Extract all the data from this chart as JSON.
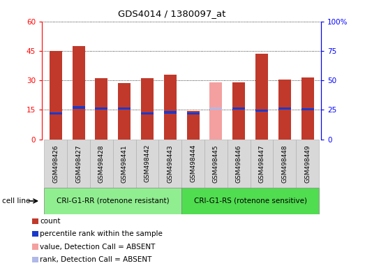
{
  "title": "GDS4014 / 1380097_at",
  "samples": [
    "GSM498426",
    "GSM498427",
    "GSM498428",
    "GSM498441",
    "GSM498442",
    "GSM498443",
    "GSM498444",
    "GSM498445",
    "GSM498446",
    "GSM498447",
    "GSM498448",
    "GSM498449"
  ],
  "counts": [
    45.0,
    47.5,
    31.0,
    28.5,
    31.0,
    33.0,
    14.5,
    0,
    29.0,
    43.5,
    30.5,
    31.5
  ],
  "ranks": [
    22.0,
    27.0,
    26.0,
    26.0,
    22.0,
    23.0,
    22.0,
    0,
    26.0,
    24.5,
    26.0,
    25.5
  ],
  "absent_count": [
    0,
    0,
    0,
    0,
    0,
    0,
    0,
    29.0,
    0,
    0,
    0,
    0
  ],
  "absent_rank": [
    0,
    0,
    0,
    0,
    0,
    0,
    0,
    26.0,
    0,
    0,
    0,
    0
  ],
  "absent_flags": [
    false,
    false,
    false,
    false,
    false,
    false,
    false,
    true,
    false,
    false,
    false,
    false
  ],
  "ylim_left": [
    0,
    60
  ],
  "ylim_right": [
    0,
    100
  ],
  "yticks_left": [
    0,
    15,
    30,
    45,
    60
  ],
  "yticks_right": [
    0,
    25,
    50,
    75,
    100
  ],
  "ytick_labels_left": [
    "0",
    "15",
    "30",
    "45",
    "60"
  ],
  "ytick_labels_right": [
    "0",
    "25",
    "50",
    "75",
    "100%"
  ],
  "group1_label": "CRI-G1-RR (rotenone resistant)",
  "group2_label": "CRI-G1-RS (rotenone sensitive)",
  "group1_indices": [
    0,
    1,
    2,
    3,
    4,
    5
  ],
  "group2_indices": [
    6,
    7,
    8,
    9,
    10,
    11
  ],
  "cell_line_label": "cell line",
  "color_count": "#c0392b",
  "color_rank": "#1a3acc",
  "color_absent_count": "#f4a0a0",
  "color_absent_rank": "#b0b8e8",
  "color_group1_bg": "#90ee90",
  "color_group2_bg": "#50dd50",
  "color_sample_bg": "#d8d8d8",
  "legend_items": [
    {
      "color": "#c0392b",
      "label": "count"
    },
    {
      "color": "#1a3acc",
      "label": "percentile rank within the sample"
    },
    {
      "color": "#f4a0a0",
      "label": "value, Detection Call = ABSENT"
    },
    {
      "color": "#b0b8e8",
      "label": "rank, Detection Call = ABSENT"
    }
  ],
  "bar_width": 0.55
}
